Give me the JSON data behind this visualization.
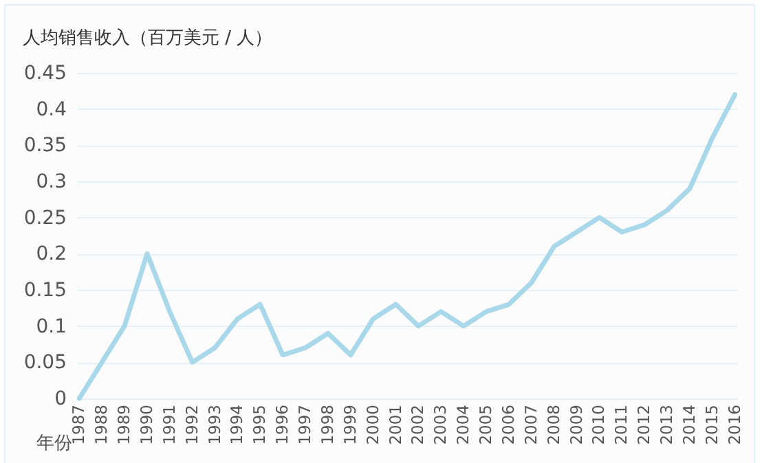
{
  "chart_data": {
    "type": "line",
    "ylabel": "人均销售收入（百万美元 / 人）",
    "xlabel": "年份",
    "categories": [
      "1987",
      "1988",
      "1989",
      "1990",
      "1991",
      "1992",
      "1993",
      "1994",
      "1995",
      "1996",
      "1997",
      "1998",
      "1999",
      "2000",
      "2001",
      "2002",
      "2003",
      "2004",
      "2005",
      "2006",
      "2007",
      "2008",
      "2009",
      "2010",
      "2011",
      "2012",
      "2013",
      "2014",
      "2015",
      "2016"
    ],
    "series": [
      {
        "color": "#a8d8ea",
        "values": [
          0,
          0.05,
          0.1,
          0.2,
          0.12,
          0.05,
          0.07,
          0.11,
          0.13,
          0.06,
          0.07,
          0.09,
          0.06,
          0.11,
          0.13,
          0.1,
          0.12,
          0.1,
          0.12,
          0.13,
          0.16,
          0.21,
          0.23,
          0.25,
          0.23,
          0.24,
          0.26,
          0.29,
          0.36,
          0.42
        ]
      }
    ],
    "ylim": [
      0,
      0.45
    ],
    "yticks": [
      0,
      0.05,
      0.1,
      0.15,
      0.2,
      0.25,
      0.3,
      0.35,
      0.4,
      0.45
    ],
    "grid": "y",
    "legend": false,
    "marker": "none",
    "line_style": "solid"
  }
}
